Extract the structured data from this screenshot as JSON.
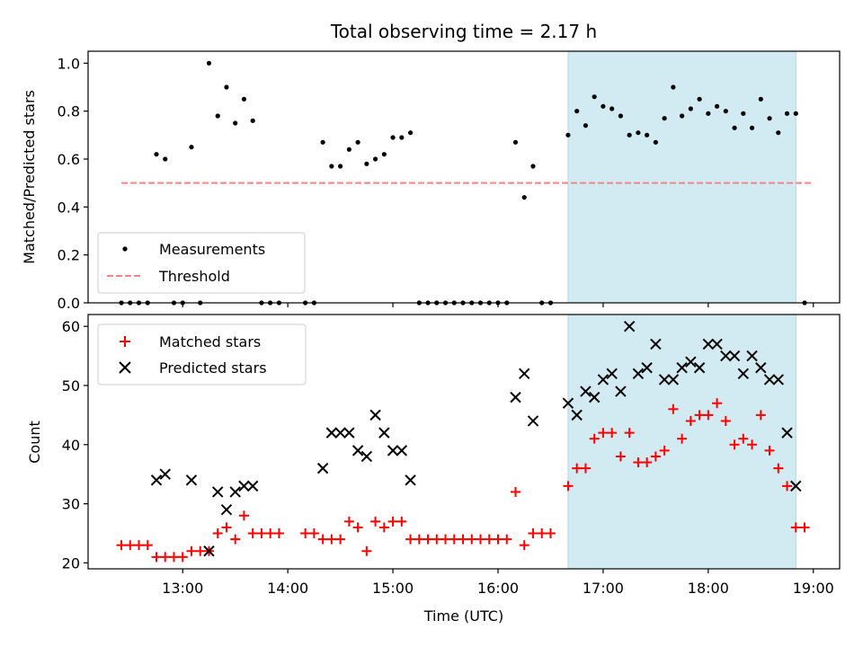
{
  "chart_data": [
    {
      "type": "scatter",
      "title": "Total observing time = 2.17 h",
      "xlabel": "",
      "ylabel": "Matched/Predicted stars",
      "xlim": [
        12.1,
        19.25
      ],
      "ylim": [
        0.0,
        1.05
      ],
      "yticks": [
        "0.0",
        "0.2",
        "0.4",
        "0.6",
        "0.8",
        "1.0"
      ],
      "x_ticks_labeled": false,
      "grid": false,
      "legend_location": "lower-left",
      "shaded_interval": {
        "x_start": "16:40",
        "x_end": "18:50",
        "color": "#add8e6"
      },
      "threshold": {
        "name": "Threshold",
        "value": 0.5,
        "x_start": "12:25",
        "x_end": "19:00",
        "color": "#ff7f7f",
        "style": "dashed"
      },
      "series": [
        {
          "name": "Measurements",
          "marker": "dot",
          "color": "#000000",
          "points": [
            [
              "12:25",
              0.0
            ],
            [
              "12:30",
              0.0
            ],
            [
              "12:35",
              0.0
            ],
            [
              "12:40",
              0.0
            ],
            [
              "12:45",
              0.62
            ],
            [
              "12:50",
              0.6
            ],
            [
              "12:55",
              0.0
            ],
            [
              "13:00",
              0.0
            ],
            [
              "13:05",
              0.65
            ],
            [
              "13:10",
              0.0
            ],
            [
              "13:15",
              1.0
            ],
            [
              "13:20",
              0.78
            ],
            [
              "13:25",
              0.9
            ],
            [
              "13:30",
              0.75
            ],
            [
              "13:35",
              0.85
            ],
            [
              "13:40",
              0.76
            ],
            [
              "13:45",
              0.0
            ],
            [
              "13:50",
              0.0
            ],
            [
              "13:55",
              0.0
            ],
            [
              "14:10",
              0.0
            ],
            [
              "14:15",
              0.0
            ],
            [
              "14:20",
              0.67
            ],
            [
              "14:25",
              0.57
            ],
            [
              "14:30",
              0.57
            ],
            [
              "14:35",
              0.64
            ],
            [
              "14:40",
              0.67
            ],
            [
              "14:45",
              0.58
            ],
            [
              "14:50",
              0.6
            ],
            [
              "14:55",
              0.62
            ],
            [
              "15:00",
              0.69
            ],
            [
              "15:05",
              0.69
            ],
            [
              "15:10",
              0.71
            ],
            [
              "15:15",
              0.0
            ],
            [
              "15:20",
              0.0
            ],
            [
              "15:25",
              0.0
            ],
            [
              "15:30",
              0.0
            ],
            [
              "15:35",
              0.0
            ],
            [
              "15:40",
              0.0
            ],
            [
              "15:45",
              0.0
            ],
            [
              "15:50",
              0.0
            ],
            [
              "15:55",
              0.0
            ],
            [
              "16:00",
              0.0
            ],
            [
              "16:05",
              0.0
            ],
            [
              "16:10",
              0.67
            ],
            [
              "16:15",
              0.44
            ],
            [
              "16:20",
              0.57
            ],
            [
              "16:25",
              0.0
            ],
            [
              "16:30",
              0.0
            ],
            [
              "16:40",
              0.7
            ],
            [
              "16:45",
              0.8
            ],
            [
              "16:50",
              0.74
            ],
            [
              "16:55",
              0.86
            ],
            [
              "17:00",
              0.82
            ],
            [
              "17:05",
              0.81
            ],
            [
              "17:10",
              0.78
            ],
            [
              "17:15",
              0.7
            ],
            [
              "17:20",
              0.71
            ],
            [
              "17:25",
              0.7
            ],
            [
              "17:30",
              0.67
            ],
            [
              "17:35",
              0.77
            ],
            [
              "17:40",
              0.9
            ],
            [
              "17:45",
              0.78
            ],
            [
              "17:50",
              0.81
            ],
            [
              "17:55",
              0.85
            ],
            [
              "18:00",
              0.79
            ],
            [
              "18:05",
              0.82
            ],
            [
              "18:10",
              0.8
            ],
            [
              "18:15",
              0.73
            ],
            [
              "18:20",
              0.79
            ],
            [
              "18:25",
              0.73
            ],
            [
              "18:30",
              0.85
            ],
            [
              "18:35",
              0.77
            ],
            [
              "18:40",
              0.71
            ],
            [
              "18:45",
              0.79
            ],
            [
              "18:50",
              0.79
            ],
            [
              "18:55",
              0.0
            ]
          ]
        }
      ]
    },
    {
      "type": "scatter",
      "title": "",
      "xlabel": "Time (UTC)",
      "ylabel": "Count",
      "xlim": [
        12.1,
        19.25
      ],
      "ylim": [
        19.0,
        62.0
      ],
      "yticks": [
        "20",
        "30",
        "40",
        "50",
        "60"
      ],
      "xticks": [
        "13:00",
        "14:00",
        "15:00",
        "16:00",
        "17:00",
        "18:00",
        "19:00"
      ],
      "grid": false,
      "legend_location": "upper-left",
      "shaded_interval": {
        "x_start": "16:40",
        "x_end": "18:50",
        "color": "#add8e6"
      },
      "series": [
        {
          "name": "Matched stars",
          "marker": "plus",
          "color": "#ff0000",
          "points": [
            [
              "12:25",
              23
            ],
            [
              "12:30",
              23
            ],
            [
              "12:35",
              23
            ],
            [
              "12:40",
              23
            ],
            [
              "12:45",
              21
            ],
            [
              "12:50",
              21
            ],
            [
              "12:55",
              21
            ],
            [
              "13:00",
              21
            ],
            [
              "13:05",
              22
            ],
            [
              "13:10",
              22
            ],
            [
              "13:15",
              22
            ],
            [
              "13:20",
              25
            ],
            [
              "13:25",
              26
            ],
            [
              "13:30",
              24
            ],
            [
              "13:35",
              28
            ],
            [
              "13:40",
              25
            ],
            [
              "13:45",
              25
            ],
            [
              "13:50",
              25
            ],
            [
              "13:55",
              25
            ],
            [
              "14:10",
              25
            ],
            [
              "14:15",
              25
            ],
            [
              "14:20",
              24
            ],
            [
              "14:25",
              24
            ],
            [
              "14:30",
              24
            ],
            [
              "14:35",
              27
            ],
            [
              "14:40",
              26
            ],
            [
              "14:45",
              22
            ],
            [
              "14:50",
              27
            ],
            [
              "14:55",
              26
            ],
            [
              "15:00",
              27
            ],
            [
              "15:05",
              27
            ],
            [
              "15:10",
              24
            ],
            [
              "15:15",
              24
            ],
            [
              "15:20",
              24
            ],
            [
              "15:25",
              24
            ],
            [
              "15:30",
              24
            ],
            [
              "15:35",
              24
            ],
            [
              "15:40",
              24
            ],
            [
              "15:45",
              24
            ],
            [
              "15:50",
              24
            ],
            [
              "15:55",
              24
            ],
            [
              "16:00",
              24
            ],
            [
              "16:05",
              24
            ],
            [
              "16:10",
              32
            ],
            [
              "16:15",
              23
            ],
            [
              "16:20",
              25
            ],
            [
              "16:25",
              25
            ],
            [
              "16:30",
              25
            ],
            [
              "16:40",
              33
            ],
            [
              "16:45",
              36
            ],
            [
              "16:50",
              36
            ],
            [
              "16:55",
              41
            ],
            [
              "17:00",
              42
            ],
            [
              "17:05",
              42
            ],
            [
              "17:10",
              38
            ],
            [
              "17:15",
              42
            ],
            [
              "17:20",
              37
            ],
            [
              "17:25",
              37
            ],
            [
              "17:30",
              38
            ],
            [
              "17:35",
              39
            ],
            [
              "17:40",
              46
            ],
            [
              "17:45",
              41
            ],
            [
              "17:50",
              44
            ],
            [
              "17:55",
              45
            ],
            [
              "18:00",
              45
            ],
            [
              "18:05",
              47
            ],
            [
              "18:10",
              44
            ],
            [
              "18:15",
              40
            ],
            [
              "18:20",
              41
            ],
            [
              "18:25",
              40
            ],
            [
              "18:30",
              45
            ],
            [
              "18:35",
              39
            ],
            [
              "18:40",
              36
            ],
            [
              "18:45",
              33
            ],
            [
              "18:50",
              26
            ],
            [
              "18:55",
              26
            ]
          ]
        },
        {
          "name": "Predicted stars",
          "marker": "x",
          "color": "#000000",
          "points": [
            [
              "12:45",
              34
            ],
            [
              "12:50",
              35
            ],
            [
              "13:05",
              34
            ],
            [
              "13:15",
              22
            ],
            [
              "13:20",
              32
            ],
            [
              "13:25",
              29
            ],
            [
              "13:30",
              32
            ],
            [
              "13:35",
              33
            ],
            [
              "13:40",
              33
            ],
            [
              "14:20",
              36
            ],
            [
              "14:25",
              42
            ],
            [
              "14:30",
              42
            ],
            [
              "14:35",
              42
            ],
            [
              "14:40",
              39
            ],
            [
              "14:45",
              38
            ],
            [
              "14:50",
              45
            ],
            [
              "14:55",
              42
            ],
            [
              "15:00",
              39
            ],
            [
              "15:05",
              39
            ],
            [
              "15:10",
              34
            ],
            [
              "16:10",
              48
            ],
            [
              "16:15",
              52
            ],
            [
              "16:20",
              44
            ],
            [
              "16:40",
              47
            ],
            [
              "16:45",
              45
            ],
            [
              "16:50",
              49
            ],
            [
              "16:55",
              48
            ],
            [
              "17:00",
              51
            ],
            [
              "17:05",
              52
            ],
            [
              "17:10",
              49
            ],
            [
              "17:15",
              60
            ],
            [
              "17:20",
              52
            ],
            [
              "17:25",
              53
            ],
            [
              "17:30",
              57
            ],
            [
              "17:35",
              51
            ],
            [
              "17:40",
              51
            ],
            [
              "17:45",
              53
            ],
            [
              "17:50",
              54
            ],
            [
              "17:55",
              53
            ],
            [
              "18:00",
              57
            ],
            [
              "18:05",
              57
            ],
            [
              "18:10",
              55
            ],
            [
              "18:15",
              55
            ],
            [
              "18:20",
              52
            ],
            [
              "18:25",
              55
            ],
            [
              "18:30",
              53
            ],
            [
              "18:35",
              51
            ],
            [
              "18:40",
              51
            ],
            [
              "18:45",
              42
            ],
            [
              "18:50",
              33
            ]
          ]
        }
      ]
    }
  ]
}
